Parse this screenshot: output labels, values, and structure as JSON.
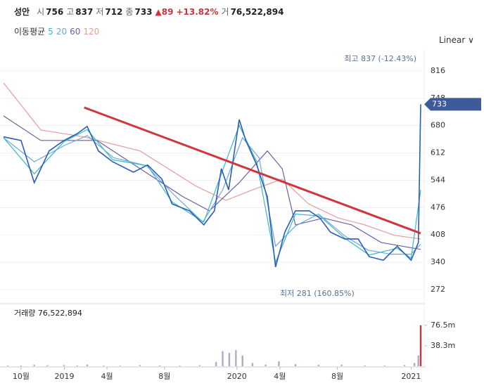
{
  "header": {
    "name": "성안",
    "quote": [
      {
        "label": "시",
        "value": "756"
      },
      {
        "label": "고",
        "value": "837"
      },
      {
        "label": "저",
        "value": "712"
      },
      {
        "label": "종",
        "value": "733"
      }
    ],
    "change": "▲89",
    "change_pct": "+13.82%",
    "volume_label": "거",
    "volume": "76,522,894"
  },
  "ma_legend_title": "이동평균",
  "scale_menu": "Linear",
  "chart_data": [
    {
      "type": "line",
      "xlim": [
        -5.3,
        120.9
      ],
      "ylim": [
        244,
        870
      ],
      "yticks": [
        272,
        340,
        408,
        476,
        544,
        612,
        680,
        748,
        816
      ],
      "grid": true,
      "price": {
        "color": "#2b5db5",
        "x": [
          -5.3,
          0,
          4,
          8.5,
          13,
          17,
          20,
          23.4,
          27.7,
          34,
          38.3,
          42.6,
          45.7,
          51,
          55.3,
          58.5,
          60.6,
          62.8,
          66,
          68,
          71.3,
          74.5,
          77,
          79.8,
          83,
          87.2,
          90.4,
          93.6,
          97.9,
          102,
          105.3,
          109.6,
          113.8,
          118,
          120.2,
          120.9
        ],
        "values": [
          652,
          643,
          538,
          617,
          643,
          660,
          678,
          617,
          590,
          564,
          582,
          547,
          485,
          468,
          433,
          468,
          573,
          520,
          695,
          643,
          582,
          503,
          328,
          415,
          468,
          468,
          450,
          415,
          398,
          398,
          354,
          345,
          380,
          345,
          389,
          733
        ]
      },
      "series": [
        {
          "name": "5",
          "color": "#3cb8c8",
          "x": [
            -5.3,
            4,
            13,
            20,
            27.7,
            38.3,
            45.7,
            55.3,
            60.6,
            66,
            71.3,
            77,
            83,
            90.4,
            97.9,
            105.3,
            113.8,
            118,
            120.9
          ],
          "values": [
            650,
            560,
            640,
            670,
            595,
            580,
            490,
            440,
            560,
            680,
            590,
            340,
            460,
            455,
            400,
            358,
            375,
            350,
            520
          ]
        },
        {
          "name": "20",
          "color": "#6aa8dc",
          "x": [
            -5.3,
            4,
            13,
            20,
            28,
            38,
            46,
            55,
            61,
            67,
            72,
            77,
            83,
            90,
            98,
            105,
            112,
            118,
            120.9
          ],
          "values": [
            650,
            590,
            630,
            655,
            600,
            580,
            510,
            440,
            520,
            650,
            600,
            380,
            430,
            460,
            405,
            370,
            360,
            360,
            385
          ]
        },
        {
          "name": "60",
          "color": "#6a5fa8",
          "x": [
            -5.3,
            6,
            15,
            23,
            36,
            49,
            57,
            66,
            74.5,
            79,
            83,
            91.5,
            100,
            109,
            120.9
          ],
          "values": [
            704,
            643,
            643,
            643,
            573,
            503,
            468,
            538,
            617,
            573,
            433,
            450,
            433,
            389,
            372
          ]
        },
        {
          "name": "120",
          "color": "#e89a9a",
          "x": [
            -5.3,
            6,
            19,
            36,
            53,
            62,
            70,
            79,
            87,
            96,
            104,
            113,
            120.9
          ],
          "values": [
            786,
            669,
            652,
            617,
            529,
            494,
            520,
            547,
            485,
            450,
            433,
            407,
            398
          ]
        }
      ],
      "trendline": {
        "color": "#d0343c",
        "x": [
          19.1,
          120.9
        ],
        "values": [
          725,
          412
        ]
      },
      "annotations": [
        "최고 837 (-12.43%)",
        "최저 281 (160.85%)"
      ],
      "last_price": 733
    },
    {
      "type": "bar",
      "title": "거래량 76,522,894",
      "xlim": [
        -5.3,
        120.9
      ],
      "ylim": [
        0,
        113000000
      ],
      "yticks": [
        {
          "value": 76500000,
          "label": "76.5m"
        },
        {
          "value": 38300000,
          "label": "38.3m"
        }
      ],
      "xticks": [
        {
          "value": 0,
          "label": "10월"
        },
        {
          "value": 13.1,
          "label": "2019"
        },
        {
          "value": 26,
          "label": "4월"
        },
        {
          "value": 43.4,
          "label": "8월"
        },
        {
          "value": 65.3,
          "label": "2020"
        },
        {
          "value": 78.3,
          "label": "4월"
        },
        {
          "value": 95.7,
          "label": "8월"
        },
        {
          "value": 118,
          "label": "2021"
        }
      ],
      "color": "#b8a6c8",
      "x": [
        -4,
        0,
        4,
        8,
        13,
        17,
        20,
        25,
        30,
        36,
        42,
        48,
        54,
        59,
        61,
        63,
        65,
        67,
        70,
        74,
        78,
        83,
        90,
        97,
        104,
        110,
        116,
        119,
        120.2,
        120.9
      ],
      "values": [
        1500000,
        1200000,
        2500000,
        1800000,
        2000000,
        1500000,
        3000000,
        1200000,
        1000000,
        2000000,
        1500000,
        1200000,
        1800000,
        8000000,
        28000000,
        25000000,
        30000000,
        20000000,
        6000000,
        3000000,
        9000000,
        4000000,
        2500000,
        3000000,
        1500000,
        1200000,
        2000000,
        6000000,
        20000000,
        76522894
      ]
    }
  ]
}
